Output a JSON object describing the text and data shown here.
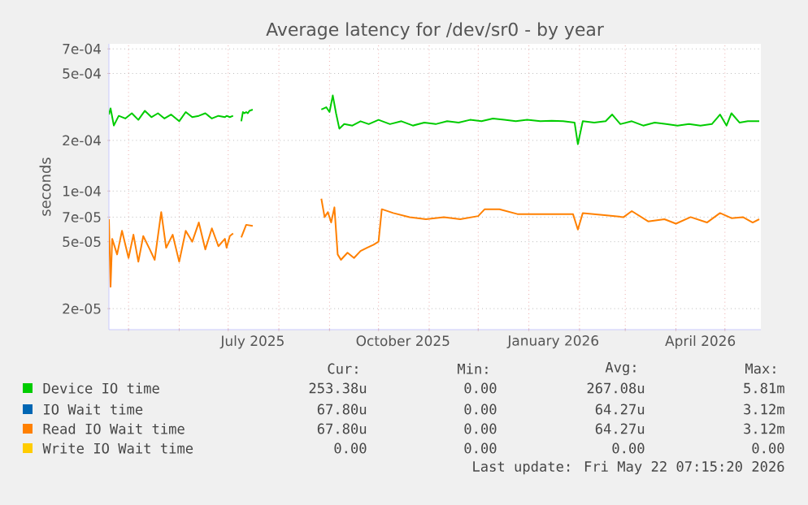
{
  "chart_data": {
    "type": "line",
    "title": "Average latency for /dev/sr0 - by year",
    "ylabel": "seconds",
    "log": "y",
    "grid": true,
    "legend": "bottom",
    "xlim": [
      "2025-04-19",
      "2026-05-23"
    ],
    "xticks": [
      {
        "value": "2025-05-01",
        "label": null
      },
      {
        "value": "2025-06-01",
        "label": null
      },
      {
        "value": "2025-07-01",
        "label": null
      },
      {
        "value": "2025-08-01",
        "label": null
      },
      {
        "value": "2025-09-01",
        "label": null
      },
      {
        "value": "2025-10-01",
        "label": null
      },
      {
        "value": "2025-11-01",
        "label": null
      },
      {
        "value": "2025-12-01",
        "label": null
      },
      {
        "value": "2026-01-01",
        "label": null
      },
      {
        "value": "2026-02-01",
        "label": null
      },
      {
        "value": "2026-03-01",
        "label": null
      },
      {
        "value": "2026-04-01",
        "label": null
      },
      {
        "value": "2026-05-01",
        "label": null
      },
      {
        "value": "2025-07-16",
        "label": "July 2025"
      },
      {
        "value": "2025-10-16",
        "label": "October 2025"
      },
      {
        "value": "2026-01-16",
        "label": "January 2026"
      },
      {
        "value": "2026-04-16",
        "label": "April 2026"
      }
    ],
    "ylim": [
      1.5e-05,
      0.00075
    ],
    "yticks": [
      {
        "value": 2e-05,
        "label": "2e-05"
      },
      {
        "value": 5e-05,
        "label": "5e-05"
      },
      {
        "value": 7e-05,
        "label": "7e-05"
      },
      {
        "value": 0.0001,
        "label": "1e-04"
      },
      {
        "value": 0.0002,
        "label": "2e-04"
      },
      {
        "value": 0.0005,
        "label": "5e-04"
      },
      {
        "value": 0.0007,
        "label": "7e-04"
      }
    ],
    "series": [
      {
        "name": "Device IO time",
        "color": "#00cc00",
        "x": [
          "2025-04-19",
          "2025-04-20",
          "2025-04-22",
          "2025-04-25",
          "2025-04-29",
          "2025-05-03",
          "2025-05-07",
          "2025-05-11",
          "2025-05-15",
          "2025-05-19",
          "2025-05-23",
          "2025-05-27",
          "2025-06-01",
          "2025-06-05",
          "2025-06-09",
          "2025-06-13",
          "2025-06-17",
          "2025-06-21",
          "2025-06-25",
          "2025-06-29",
          "2025-06-30",
          "2025-07-02",
          "2025-07-04",
          "2025-07-06",
          "2025-07-09",
          "2025-07-10",
          "2025-07-11",
          "2025-07-12",
          "2025-07-13",
          "2025-07-14",
          "2025-07-16",
          "2025-08-01",
          "2025-08-27",
          "2025-08-30",
          "2025-09-01",
          "2025-09-03",
          "2025-09-05",
          "2025-09-07",
          "2025-09-10",
          "2025-09-15",
          "2025-09-20",
          "2025-09-25",
          "2025-10-01",
          "2025-10-08",
          "2025-10-15",
          "2025-10-22",
          "2025-10-29",
          "2025-11-05",
          "2025-11-12",
          "2025-11-19",
          "2025-11-26",
          "2025-12-03",
          "2025-12-10",
          "2025-12-17",
          "2025-12-24",
          "2025-12-31",
          "2026-01-08",
          "2026-01-15",
          "2026-01-22",
          "2026-01-29",
          "2026-01-31",
          "2026-02-03",
          "2026-02-10",
          "2026-02-17",
          "2026-02-21",
          "2026-02-26",
          "2026-03-05",
          "2026-03-12",
          "2026-03-19",
          "2026-03-26",
          "2026-04-02",
          "2026-04-09",
          "2026-04-16",
          "2026-04-23",
          "2026-04-28",
          "2026-05-02",
          "2026-05-05",
          "2026-05-10",
          "2026-05-15",
          "2026-05-22"
        ],
        "values": [
          0.000285,
          0.00031,
          0.000245,
          0.00028,
          0.00027,
          0.00029,
          0.000265,
          0.0003,
          0.000275,
          0.00029,
          0.00027,
          0.000285,
          0.00026,
          0.000295,
          0.000275,
          0.00028,
          0.00029,
          0.00027,
          0.00028,
          0.000275,
          0.00028,
          0.000275,
          0.00028,
          null,
          0.00026,
          0.000295,
          0.00029,
          0.000295,
          0.00029,
          0.0003,
          0.000305,
          null,
          0.000305,
          0.000315,
          0.000295,
          0.00037,
          0.00029,
          0.000235,
          0.00025,
          0.000245,
          0.00026,
          0.00025,
          0.000265,
          0.00025,
          0.00026,
          0.000245,
          0.000255,
          0.00025,
          0.00026,
          0.000255,
          0.000265,
          0.00026,
          0.00027,
          0.000265,
          0.00026,
          0.000265,
          0.00026,
          0.000262,
          0.00026,
          0.000255,
          0.00019,
          0.00026,
          0.000255,
          0.00026,
          0.000285,
          0.00025,
          0.00026,
          0.000245,
          0.000255,
          0.00025,
          0.000245,
          0.00025,
          0.000245,
          0.00025,
          0.000285,
          0.000245,
          0.00029,
          0.000255,
          0.00026,
          0.00026
        ]
      },
      {
        "name": "IO Wait time",
        "color": "#0066b3"
      },
      {
        "name": "Read IO Wait time",
        "color": "#ff8000",
        "x": [
          "2025-04-19",
          "2025-04-20",
          "2025-04-21",
          "2025-04-24",
          "2025-04-27",
          "2025-05-01",
          "2025-05-04",
          "2025-05-07",
          "2025-05-10",
          "2025-05-14",
          "2025-05-17",
          "2025-05-21",
          "2025-05-24",
          "2025-05-28",
          "2025-06-01",
          "2025-06-05",
          "2025-06-09",
          "2025-06-13",
          "2025-06-17",
          "2025-06-21",
          "2025-06-25",
          "2025-06-29",
          "2025-06-30",
          "2025-07-02",
          "2025-07-04",
          "2025-07-06",
          "2025-07-09",
          "2025-07-12",
          "2025-07-16",
          "2025-08-01",
          "2025-08-27",
          "2025-08-29",
          "2025-08-31",
          "2025-09-02",
          "2025-09-04",
          "2025-09-06",
          "2025-09-08",
          "2025-09-12",
          "2025-09-16",
          "2025-09-20",
          "2025-09-24",
          "2025-09-28",
          "2025-10-01",
          "2025-10-03",
          "2025-10-10",
          "2025-10-20",
          "2025-10-30",
          "2025-11-10",
          "2025-11-20",
          "2025-12-01",
          "2025-12-05",
          "2025-12-14",
          "2025-12-25",
          "2026-01-05",
          "2026-01-28",
          "2026-01-31",
          "2026-02-03",
          "2026-02-15",
          "2026-02-28",
          "2026-03-05",
          "2026-03-15",
          "2026-03-25",
          "2026-04-01",
          "2026-04-10",
          "2026-04-20",
          "2026-04-28",
          "2026-05-05",
          "2026-05-12",
          "2026-05-18",
          "2026-05-22"
        ],
        "values": [
          6.8e-05,
          2.7e-05,
          5.2e-05,
          4.2e-05,
          5.8e-05,
          4e-05,
          5.5e-05,
          3.8e-05,
          5.4e-05,
          4.5e-05,
          3.9e-05,
          7.5e-05,
          4.6e-05,
          5.5e-05,
          3.8e-05,
          5.8e-05,
          5e-05,
          6.5e-05,
          4.5e-05,
          6e-05,
          4.7e-05,
          5.2e-05,
          4.6e-05,
          5.4e-05,
          5.6e-05,
          null,
          5.3e-05,
          6.3e-05,
          6.2e-05,
          null,
          9e-05,
          7e-05,
          7.5e-05,
          6.5e-05,
          8e-05,
          4.2e-05,
          3.9e-05,
          4.3e-05,
          4e-05,
          4.4e-05,
          4.6e-05,
          4.8e-05,
          5e-05,
          7.8e-05,
          7.4e-05,
          7e-05,
          6.8e-05,
          7e-05,
          6.8e-05,
          7.1e-05,
          7.8e-05,
          7.8e-05,
          7.3e-05,
          7.3e-05,
          7.3e-05,
          5.9e-05,
          7.4e-05,
          7.2e-05,
          7e-05,
          7.6e-05,
          6.6e-05,
          6.8e-05,
          6.4e-05,
          7e-05,
          6.5e-05,
          7.4e-05,
          6.9e-05,
          7e-05,
          6.5e-05,
          6.8e-05
        ]
      },
      {
        "name": "Write IO Wait time",
        "color": "#ffcc00"
      }
    ],
    "annotations": [
      "Cur:",
      "Min:",
      "Avg:",
      "Max:",
      "253.38u",
      "0.00",
      "267.08u",
      "5.81m",
      "67.80u",
      "0.00",
      "64.27u",
      "3.12m",
      "67.80u",
      "0.00",
      "64.27u",
      "3.12m",
      "0.00",
      "0.00",
      "0.00",
      "0.00",
      "Last update: Fri May 22 07:15:20 2026"
    ]
  }
}
